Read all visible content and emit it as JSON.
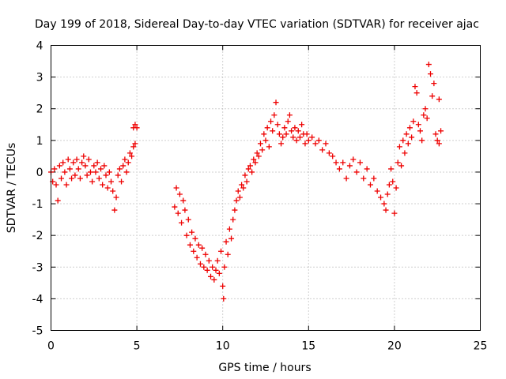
{
  "chart_data": {
    "type": "scatter",
    "title": "Day 199 of 2018, Sidereal Day-to-day VTEC variation (SDTVAR) for receiver ajac",
    "xlabel": "GPS time / hours",
    "ylabel": "SDTVAR / TECUs",
    "xlim": [
      0,
      25
    ],
    "ylim": [
      -5,
      4
    ],
    "xticks": [
      "0",
      "5",
      "10",
      "15",
      "20",
      "25"
    ],
    "yticks": [
      "-5",
      "-4",
      "-3",
      "-2",
      "-1",
      "0",
      "1",
      "2",
      "3",
      "4"
    ],
    "grid": true,
    "marker": "+",
    "color": "#ee0000",
    "series": [
      {
        "name": "SDTVAR",
        "points": [
          [
            0.0,
            0.0
          ],
          [
            0.1,
            -0.3
          ],
          [
            0.2,
            0.1
          ],
          [
            0.3,
            -0.4
          ],
          [
            0.4,
            -0.9
          ],
          [
            0.5,
            0.2
          ],
          [
            0.6,
            -0.2
          ],
          [
            0.7,
            0.3
          ],
          [
            0.8,
            0.0
          ],
          [
            0.9,
            -0.4
          ],
          [
            1.0,
            0.4
          ],
          [
            1.1,
            0.1
          ],
          [
            1.2,
            -0.2
          ],
          [
            1.3,
            0.3
          ],
          [
            1.4,
            -0.1
          ],
          [
            1.5,
            0.4
          ],
          [
            1.6,
            0.1
          ],
          [
            1.7,
            -0.2
          ],
          [
            1.8,
            0.3
          ],
          [
            1.9,
            0.5
          ],
          [
            2.0,
            0.2
          ],
          [
            2.1,
            -0.1
          ],
          [
            2.2,
            0.4
          ],
          [
            2.3,
            0.0
          ],
          [
            2.4,
            -0.3
          ],
          [
            2.5,
            0.2
          ],
          [
            2.6,
            0.0
          ],
          [
            2.7,
            0.3
          ],
          [
            2.8,
            -0.2
          ],
          [
            2.9,
            0.1
          ],
          [
            3.0,
            -0.4
          ],
          [
            3.1,
            0.2
          ],
          [
            3.2,
            -0.1
          ],
          [
            3.3,
            -0.5
          ],
          [
            3.4,
            0.0
          ],
          [
            3.5,
            -0.3
          ],
          [
            3.6,
            -0.6
          ],
          [
            3.7,
            -1.2
          ],
          [
            3.8,
            -0.8
          ],
          [
            3.9,
            -0.1
          ],
          [
            4.0,
            0.1
          ],
          [
            4.1,
            -0.3
          ],
          [
            4.2,
            0.2
          ],
          [
            4.3,
            0.4
          ],
          [
            4.4,
            0.0
          ],
          [
            4.5,
            0.3
          ],
          [
            4.6,
            0.6
          ],
          [
            4.7,
            0.5
          ],
          [
            4.8,
            0.8
          ],
          [
            4.9,
            0.9
          ],
          [
            4.8,
            1.4
          ],
          [
            4.9,
            1.5
          ],
          [
            5.0,
            1.4
          ],
          [
            7.2,
            -1.1
          ],
          [
            7.3,
            -0.5
          ],
          [
            7.4,
            -1.3
          ],
          [
            7.5,
            -0.7
          ],
          [
            7.6,
            -1.6
          ],
          [
            7.7,
            -0.9
          ],
          [
            7.8,
            -1.2
          ],
          [
            7.9,
            -2.0
          ],
          [
            8.0,
            -1.5
          ],
          [
            8.1,
            -2.3
          ],
          [
            8.2,
            -1.9
          ],
          [
            8.3,
            -2.5
          ],
          [
            8.4,
            -2.1
          ],
          [
            8.5,
            -2.7
          ],
          [
            8.6,
            -2.3
          ],
          [
            8.7,
            -2.9
          ],
          [
            8.8,
            -2.4
          ],
          [
            8.9,
            -3.0
          ],
          [
            9.0,
            -2.6
          ],
          [
            9.1,
            -3.1
          ],
          [
            9.2,
            -2.8
          ],
          [
            9.3,
            -3.3
          ],
          [
            9.4,
            -3.0
          ],
          [
            9.5,
            -3.4
          ],
          [
            9.6,
            -3.1
          ],
          [
            9.7,
            -2.8
          ],
          [
            9.8,
            -3.2
          ],
          [
            9.9,
            -2.5
          ],
          [
            10.0,
            -3.6
          ],
          [
            10.05,
            -4.0
          ],
          [
            10.1,
            -3.0
          ],
          [
            10.2,
            -2.2
          ],
          [
            10.3,
            -2.6
          ],
          [
            10.4,
            -1.8
          ],
          [
            10.5,
            -2.1
          ],
          [
            10.6,
            -1.5
          ],
          [
            10.7,
            -1.2
          ],
          [
            10.8,
            -0.9
          ],
          [
            10.9,
            -0.6
          ],
          [
            11.0,
            -0.8
          ],
          [
            11.1,
            -0.4
          ],
          [
            11.2,
            -0.5
          ],
          [
            11.3,
            -0.1
          ],
          [
            11.4,
            -0.3
          ],
          [
            11.5,
            0.1
          ],
          [
            11.6,
            0.2
          ],
          [
            11.7,
            0.0
          ],
          [
            11.8,
            0.4
          ],
          [
            11.9,
            0.3
          ],
          [
            12.0,
            0.6
          ],
          [
            12.1,
            0.5
          ],
          [
            12.2,
            0.9
          ],
          [
            12.3,
            0.7
          ],
          [
            12.4,
            1.2
          ],
          [
            12.5,
            1.0
          ],
          [
            12.6,
            1.4
          ],
          [
            12.7,
            0.8
          ],
          [
            12.8,
            1.6
          ],
          [
            12.9,
            1.3
          ],
          [
            13.0,
            1.8
          ],
          [
            13.1,
            2.2
          ],
          [
            13.2,
            1.5
          ],
          [
            13.3,
            1.2
          ],
          [
            13.4,
            0.9
          ],
          [
            13.5,
            1.1
          ],
          [
            13.6,
            1.4
          ],
          [
            13.7,
            1.2
          ],
          [
            13.8,
            1.6
          ],
          [
            13.9,
            1.8
          ],
          [
            14.0,
            1.3
          ],
          [
            14.1,
            1.1
          ],
          [
            14.2,
            1.4
          ],
          [
            14.3,
            1.0
          ],
          [
            14.4,
            1.3
          ],
          [
            14.5,
            1.1
          ],
          [
            14.6,
            1.5
          ],
          [
            14.7,
            1.2
          ],
          [
            14.8,
            0.9
          ],
          [
            14.9,
            1.2
          ],
          [
            15.0,
            1.0
          ],
          [
            15.2,
            1.1
          ],
          [
            15.4,
            0.9
          ],
          [
            15.6,
            1.0
          ],
          [
            15.8,
            0.7
          ],
          [
            16.0,
            0.9
          ],
          [
            16.2,
            0.6
          ],
          [
            16.4,
            0.5
          ],
          [
            16.6,
            0.3
          ],
          [
            16.8,
            0.1
          ],
          [
            17.0,
            0.3
          ],
          [
            17.2,
            -0.2
          ],
          [
            17.4,
            0.2
          ],
          [
            17.6,
            0.4
          ],
          [
            17.8,
            0.0
          ],
          [
            18.0,
            0.3
          ],
          [
            18.2,
            -0.2
          ],
          [
            18.4,
            0.1
          ],
          [
            18.6,
            -0.4
          ],
          [
            18.8,
            -0.2
          ],
          [
            19.0,
            -0.6
          ],
          [
            19.2,
            -0.8
          ],
          [
            19.4,
            -1.0
          ],
          [
            19.5,
            -1.2
          ],
          [
            19.6,
            -0.7
          ],
          [
            19.7,
            -0.4
          ],
          [
            19.8,
            0.1
          ],
          [
            19.9,
            -0.3
          ],
          [
            20.0,
            -1.3
          ],
          [
            20.1,
            -0.5
          ],
          [
            20.2,
            0.3
          ],
          [
            20.3,
            0.8
          ],
          [
            20.4,
            0.2
          ],
          [
            20.5,
            1.0
          ],
          [
            20.6,
            0.6
          ],
          [
            20.7,
            1.2
          ],
          [
            20.8,
            0.9
          ],
          [
            20.9,
            1.4
          ],
          [
            21.0,
            1.1
          ],
          [
            21.1,
            1.6
          ],
          [
            21.2,
            2.7
          ],
          [
            21.3,
            2.5
          ],
          [
            21.4,
            1.5
          ],
          [
            21.5,
            1.3
          ],
          [
            21.6,
            1.0
          ],
          [
            21.7,
            1.8
          ],
          [
            21.8,
            2.0
          ],
          [
            21.9,
            1.7
          ],
          [
            22.0,
            3.4
          ],
          [
            22.1,
            3.1
          ],
          [
            22.2,
            2.4
          ],
          [
            22.3,
            2.8
          ],
          [
            22.4,
            1.2
          ],
          [
            22.5,
            1.0
          ],
          [
            22.6,
            2.3
          ],
          [
            22.7,
            1.3
          ],
          [
            22.6,
            0.9
          ]
        ]
      }
    ]
  }
}
